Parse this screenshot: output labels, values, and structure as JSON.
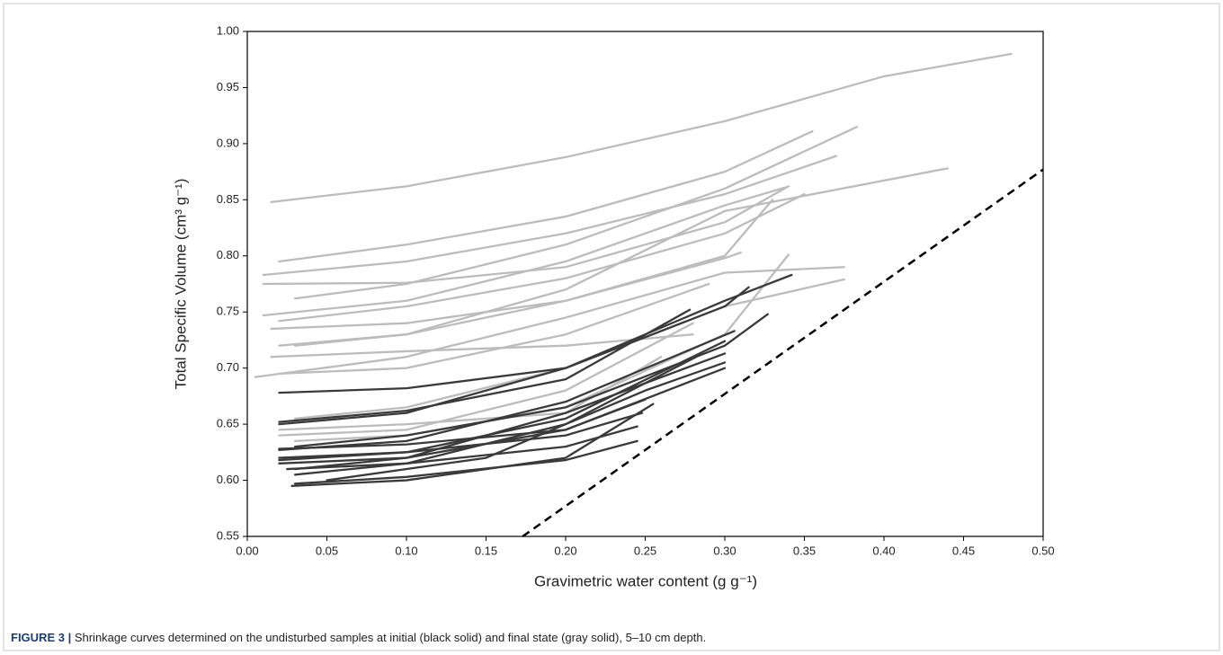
{
  "chart_data": {
    "type": "line",
    "xlabel": "Gravimetric water content (g g⁻¹)",
    "ylabel": "Total Specific Volume (cm³ g⁻¹)",
    "caption_label": "FIGURE 3 |",
    "caption": "Shrinkage curves determined on the undisturbed samples at initial (black solid) and final state (gray solid), 5–10 cm depth.",
    "xlim": [
      0,
      0.5
    ],
    "ylim": [
      0.55,
      1.0
    ],
    "xticks": [
      {
        "value": 0,
        "label": "0.00"
      },
      0.05,
      {
        "value": 0.1,
        "label": "0.10"
      },
      0.15,
      {
        "value": 0.2,
        "label": "0.20"
      },
      0.25,
      {
        "value": 0.3,
        "label": "0.30"
      },
      0.35,
      {
        "value": 0.4,
        "label": "0.40"
      },
      0.45,
      {
        "value": 0.5,
        "label": "0.50"
      }
    ],
    "yticks": [
      0.55,
      {
        "value": 0.6,
        "label": "0.60"
      },
      0.65,
      {
        "value": 0.7,
        "label": "0.70"
      },
      0.75,
      {
        "value": 0.8,
        "label": "0.80"
      },
      0.85,
      {
        "value": 0.9,
        "label": "0.90"
      },
      0.95,
      {
        "value": 1.0,
        "label": "1.00"
      }
    ],
    "series": [
      {
        "color": "#bcbcbc",
        "x": [
          0.015,
          0.1,
          0.2,
          0.3,
          0.4,
          0.48
        ],
        "values": [
          0.848,
          0.862,
          0.888,
          0.92,
          0.96,
          0.98
        ]
      },
      {
        "color": "#bcbcbc",
        "x": [
          0.02,
          0.1,
          0.2,
          0.3,
          0.355
        ],
        "values": [
          0.795,
          0.81,
          0.835,
          0.875,
          0.911
        ]
      },
      {
        "color": "#bcbcbc",
        "x": [
          0.03,
          0.1,
          0.2,
          0.3,
          0.383
        ],
        "values": [
          0.762,
          0.775,
          0.81,
          0.86,
          0.915
        ]
      },
      {
        "color": "#bcbcbc",
        "x": [
          0.01,
          0.1,
          0.2,
          0.3,
          0.37
        ],
        "values": [
          0.783,
          0.795,
          0.82,
          0.855,
          0.889
        ]
      },
      {
        "color": "#bcbcbc",
        "x": [
          0.01,
          0.1,
          0.2,
          0.3,
          0.34
        ],
        "values": [
          0.775,
          0.776,
          0.79,
          0.83,
          0.862
        ]
      },
      {
        "color": "#bcbcbc",
        "x": [
          0.02,
          0.1,
          0.2,
          0.3,
          0.35
        ],
        "values": [
          0.742,
          0.755,
          0.78,
          0.82,
          0.855
        ]
      },
      {
        "color": "#bcbcbc",
        "x": [
          0.01,
          0.1,
          0.2,
          0.3,
          0.338
        ],
        "values": [
          0.747,
          0.76,
          0.795,
          0.845,
          0.861
        ]
      },
      {
        "color": "#bcbcbc",
        "x": [
          0.02,
          0.1,
          0.2,
          0.3,
          0.44
        ],
        "values": [
          0.72,
          0.73,
          0.77,
          0.84,
          0.878
        ]
      },
      {
        "color": "#bcbcbc",
        "x": [
          0.015,
          0.1,
          0.2,
          0.3,
          0.33
        ],
        "values": [
          0.735,
          0.74,
          0.76,
          0.8,
          0.85
        ]
      },
      {
        "color": "#bcbcbc",
        "x": [
          0.005,
          0.1,
          0.2,
          0.3,
          0.375
        ],
        "values": [
          0.692,
          0.71,
          0.745,
          0.785,
          0.79
        ]
      },
      {
        "color": "#bcbcbc",
        "x": [
          0.015,
          0.1,
          0.2,
          0.28
        ],
        "values": [
          0.71,
          0.715,
          0.72,
          0.73
        ]
      },
      {
        "color": "#bcbcbc",
        "x": [
          0.02,
          0.1,
          0.2,
          0.29
        ],
        "values": [
          0.695,
          0.7,
          0.73,
          0.775
        ]
      },
      {
        "color": "#bcbcbc",
        "x": [
          0.03,
          0.1,
          0.2,
          0.3,
          0.375
        ],
        "values": [
          0.655,
          0.665,
          0.7,
          0.755,
          0.779
        ]
      },
      {
        "color": "#bcbcbc",
        "x": [
          0.02,
          0.1,
          0.2,
          0.28
        ],
        "values": [
          0.64,
          0.645,
          0.68,
          0.74
        ]
      },
      {
        "color": "#bcbcbc",
        "x": [
          0.03,
          0.1,
          0.2,
          0.3,
          0.34
        ],
        "values": [
          0.635,
          0.64,
          0.665,
          0.73,
          0.801
        ]
      },
      {
        "color": "#bcbcbc",
        "x": [
          0.03,
          0.1,
          0.2,
          0.3,
          0.31
        ],
        "values": [
          0.72,
          0.73,
          0.76,
          0.798,
          0.803
        ]
      },
      {
        "color": "#bcbcbc",
        "x": [
          0.02,
          0.1,
          0.2,
          0.26
        ],
        "values": [
          0.645,
          0.65,
          0.66,
          0.71
        ]
      },
      {
        "color": "#3a3a3a",
        "x": [
          0.02,
          0.1,
          0.2,
          0.3,
          0.342
        ],
        "values": [
          0.678,
          0.682,
          0.7,
          0.76,
          0.783
        ]
      },
      {
        "color": "#3a3a3a",
        "x": [
          0.02,
          0.1,
          0.2,
          0.3,
          0.315
        ],
        "values": [
          0.65,
          0.66,
          0.7,
          0.755,
          0.772
        ]
      },
      {
        "color": "#3a3a3a",
        "x": [
          0.02,
          0.1,
          0.2,
          0.278
        ],
        "values": [
          0.652,
          0.662,
          0.69,
          0.752
        ]
      },
      {
        "color": "#3a3a3a",
        "x": [
          0.03,
          0.1,
          0.2,
          0.3,
          0.327
        ],
        "values": [
          0.63,
          0.64,
          0.665,
          0.72,
          0.748
        ]
      },
      {
        "color": "#3a3a3a",
        "x": [
          0.02,
          0.1,
          0.2,
          0.306
        ],
        "values": [
          0.627,
          0.635,
          0.67,
          0.733
        ]
      },
      {
        "color": "#3a3a3a",
        "x": [
          0.02,
          0.1,
          0.2,
          0.3
        ],
        "values": [
          0.62,
          0.625,
          0.655,
          0.724
        ]
      },
      {
        "color": "#3a3a3a",
        "x": [
          0.03,
          0.1,
          0.2,
          0.3
        ],
        "values": [
          0.61,
          0.62,
          0.66,
          0.713
        ]
      },
      {
        "color": "#3a3a3a",
        "x": [
          0.02,
          0.1,
          0.2,
          0.3
        ],
        "values": [
          0.615,
          0.62,
          0.645,
          0.7
        ]
      },
      {
        "color": "#3a3a3a",
        "x": [
          0.03,
          0.1,
          0.2,
          0.282
        ],
        "values": [
          0.605,
          0.615,
          0.65,
          0.71
        ]
      },
      {
        "color": "#3a3a3a",
        "x": [
          0.028,
          0.1,
          0.2,
          0.255
        ],
        "values": [
          0.595,
          0.6,
          0.62,
          0.668
        ]
      },
      {
        "color": "#3a3a3a",
        "x": [
          0.02,
          0.1,
          0.2,
          0.248
        ],
        "values": [
          0.618,
          0.625,
          0.64,
          0.66
        ]
      },
      {
        "color": "#3a3a3a",
        "x": [
          0.025,
          0.1,
          0.2,
          0.245
        ],
        "values": [
          0.61,
          0.615,
          0.63,
          0.648
        ]
      },
      {
        "color": "#3a3a3a",
        "x": [
          0.03,
          0.1,
          0.2,
          0.245
        ],
        "values": [
          0.597,
          0.603,
          0.618,
          0.635
        ]
      },
      {
        "color": "#3a3a3a",
        "x": [
          0.05,
          0.15,
          0.25,
          0.3
        ],
        "values": [
          0.6,
          0.62,
          0.68,
          0.705
        ]
      },
      {
        "color": "#3a3a3a",
        "x": [
          0.02,
          0.1,
          0.2,
          0.25
        ],
        "values": [
          0.628,
          0.632,
          0.645,
          0.672
        ]
      },
      {
        "color": "#000000",
        "dashed": true,
        "x": [
          0.173,
          0.5
        ],
        "values": [
          0.55,
          0.877
        ]
      }
    ]
  }
}
